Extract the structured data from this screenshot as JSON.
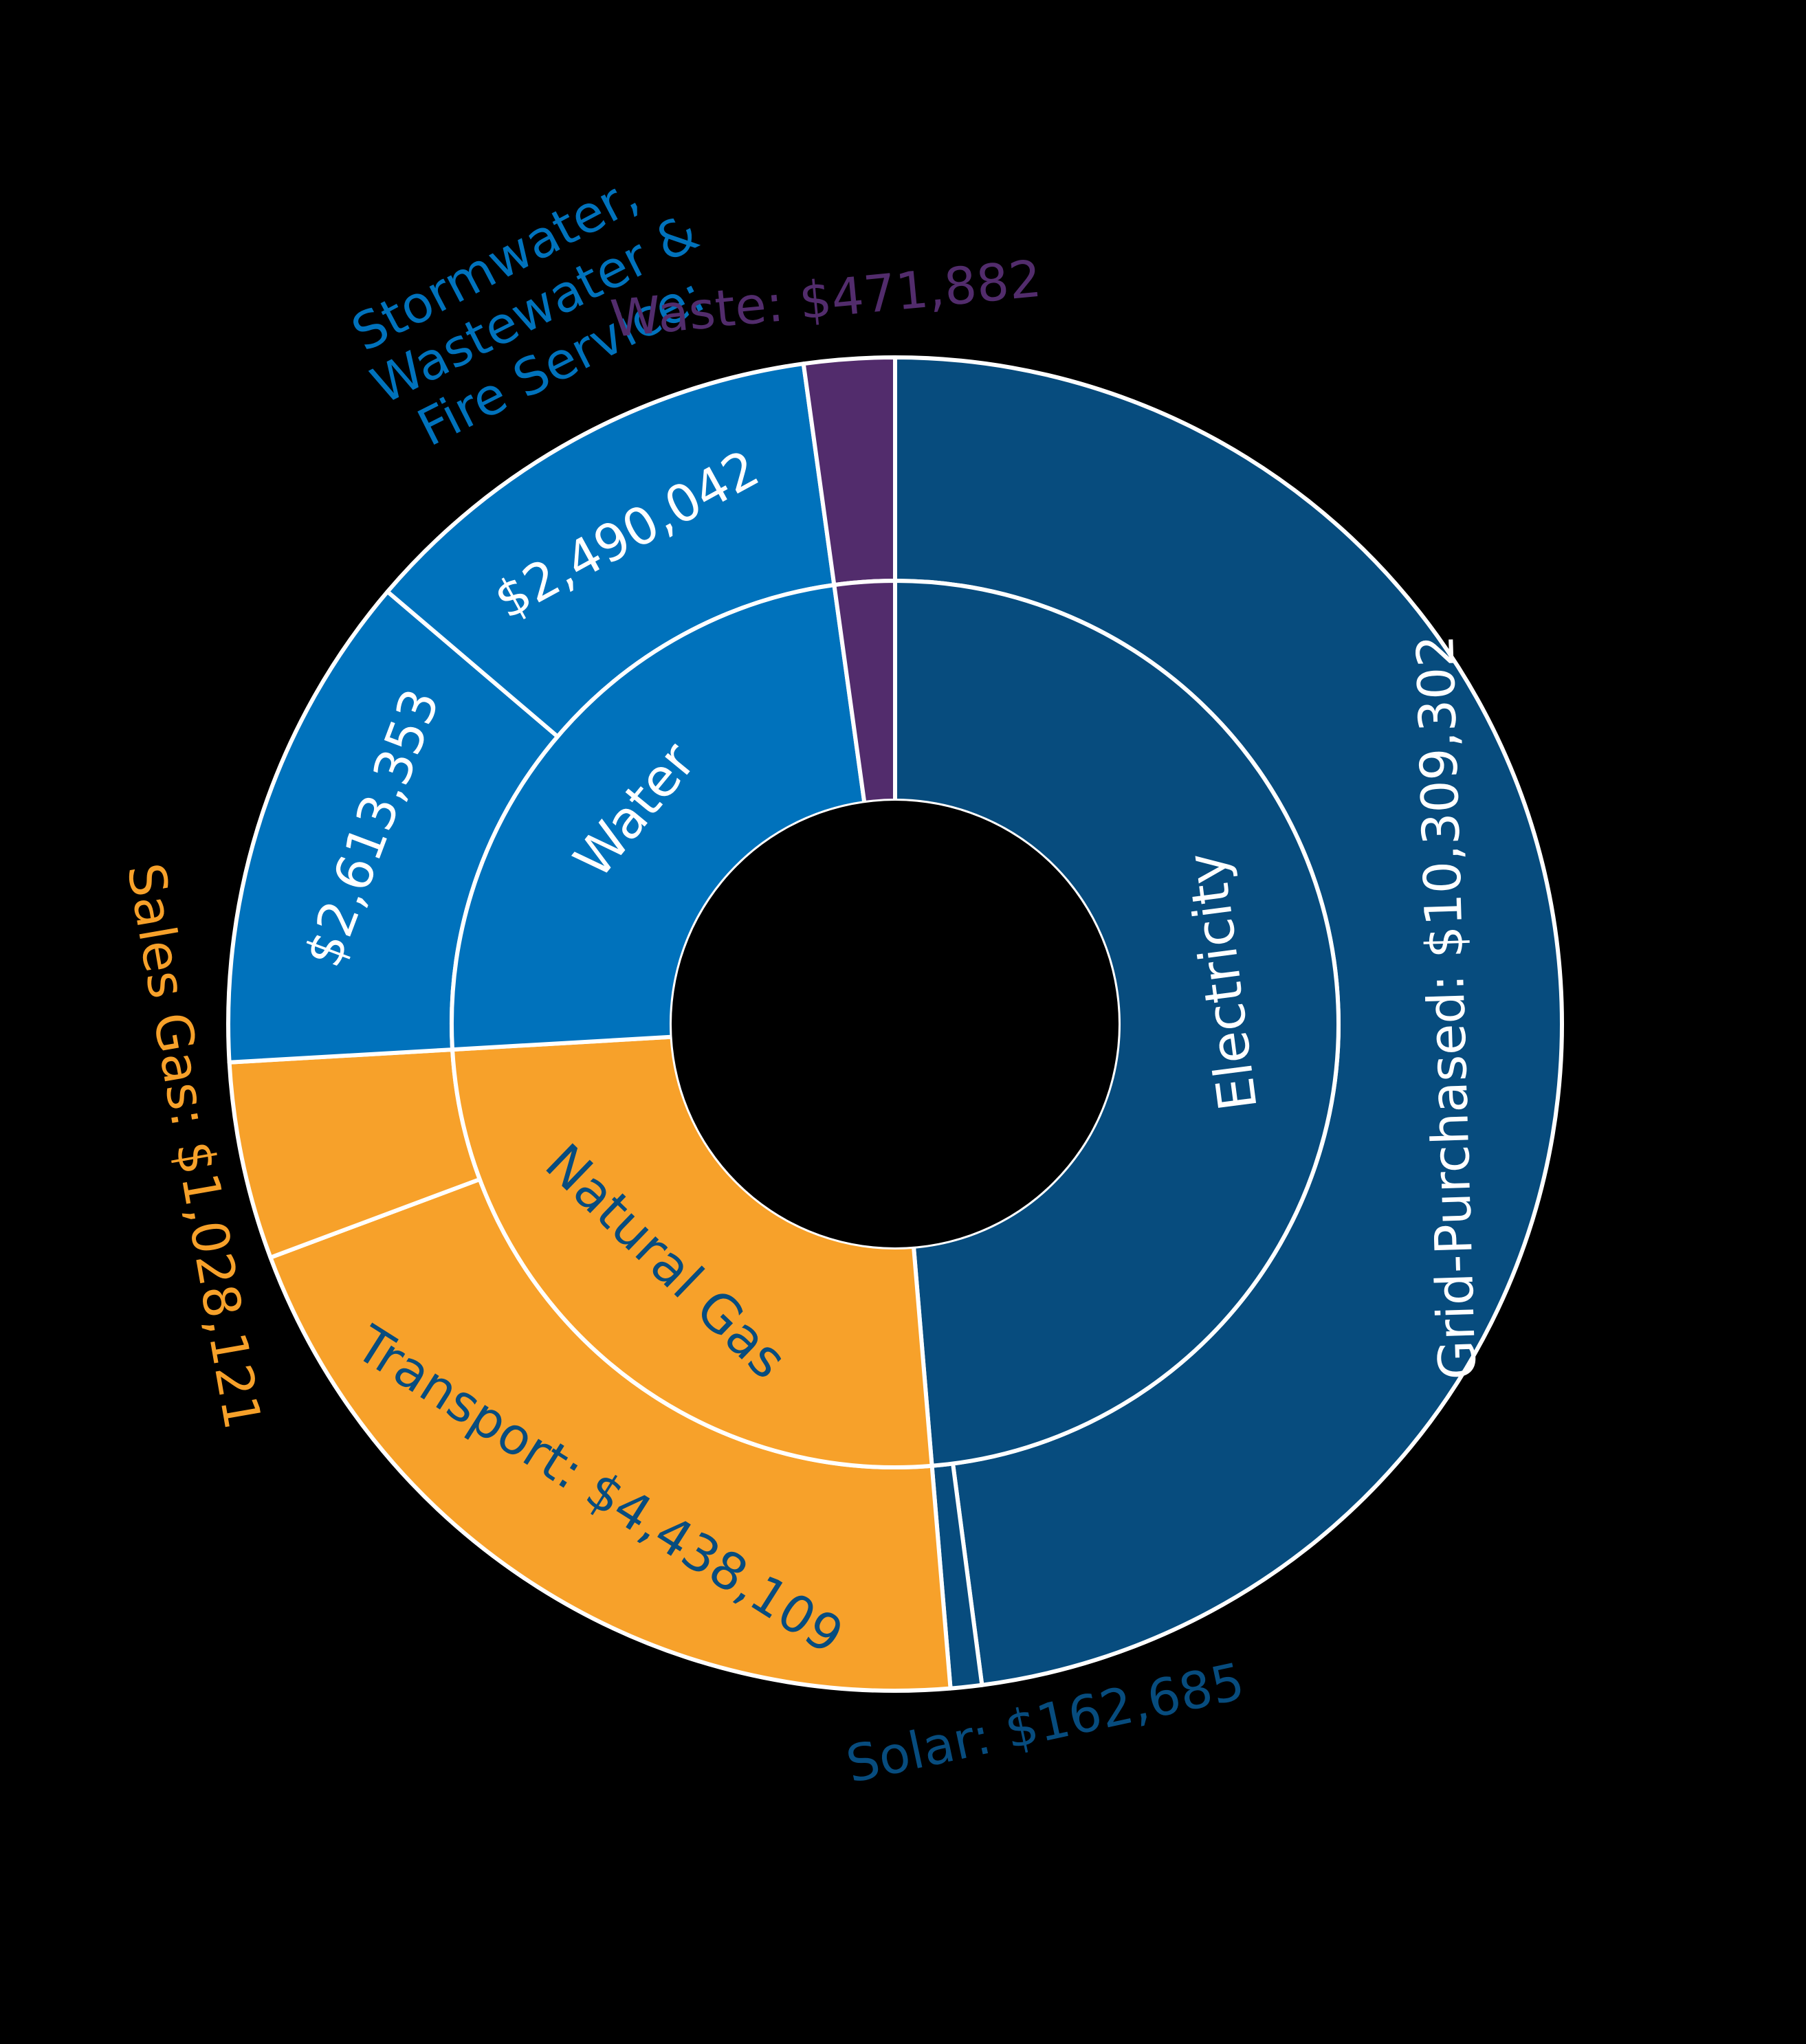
{
  "chart_data": {
    "type": "sunburst",
    "title": "",
    "categories": [
      {
        "name": "Electricity",
        "label": "Electricity",
        "color": "#074c7e",
        "label_color": "#ffffff",
        "children": [
          {
            "name": "Grid-Purchased",
            "value": 10309302,
            "label": "Grid-Purchased: $10,309,302",
            "label_color": "#ffffff"
          },
          {
            "name": "Solar",
            "value": 162685,
            "label": "Solar: $162,685",
            "label_color": "#074c7e"
          }
        ]
      },
      {
        "name": "Natural Gas",
        "label": "Natural Gas",
        "color": "#f7a12a",
        "label_color": "#074c7e",
        "children": [
          {
            "name": "Transport",
            "value": 4438109,
            "label": "Transport: $4,438,109",
            "label_color": "#074c7e"
          },
          {
            "name": "Sales Gas",
            "value": 1028121,
            "label": "Sales Gas: $1,028,121",
            "label_color": "#f7a12a"
          }
        ]
      },
      {
        "name": "Water",
        "label": "Water",
        "color": "#0072bc",
        "label_color": "#ffffff",
        "children": [
          {
            "name": "Water",
            "value": 2613353,
            "label": "$2,613,353",
            "label_color": "#ffffff"
          },
          {
            "name": "Stormwater, Wastewater & Fire Service",
            "value": 2490042,
            "label": "$2,490,042",
            "label_color": "#ffffff"
          }
        ]
      },
      {
        "name": "Waste",
        "label": "",
        "color": "#522c6c",
        "label_color": "#522c6c",
        "children": [
          {
            "name": "Waste",
            "value": 471882,
            "label": "",
            "label_color": "#522c6c"
          }
        ]
      }
    ],
    "external_labels": {
      "stormwater_lines": [
        "Stormwater,",
        "Wastewater &",
        "Fire Service:"
      ],
      "stormwater_color": "#0072bc",
      "waste": "Waste: $471,882",
      "waste_color": "#522c6c"
    },
    "colors": {
      "background": "#000000",
      "divider": "#ffffff"
    }
  }
}
